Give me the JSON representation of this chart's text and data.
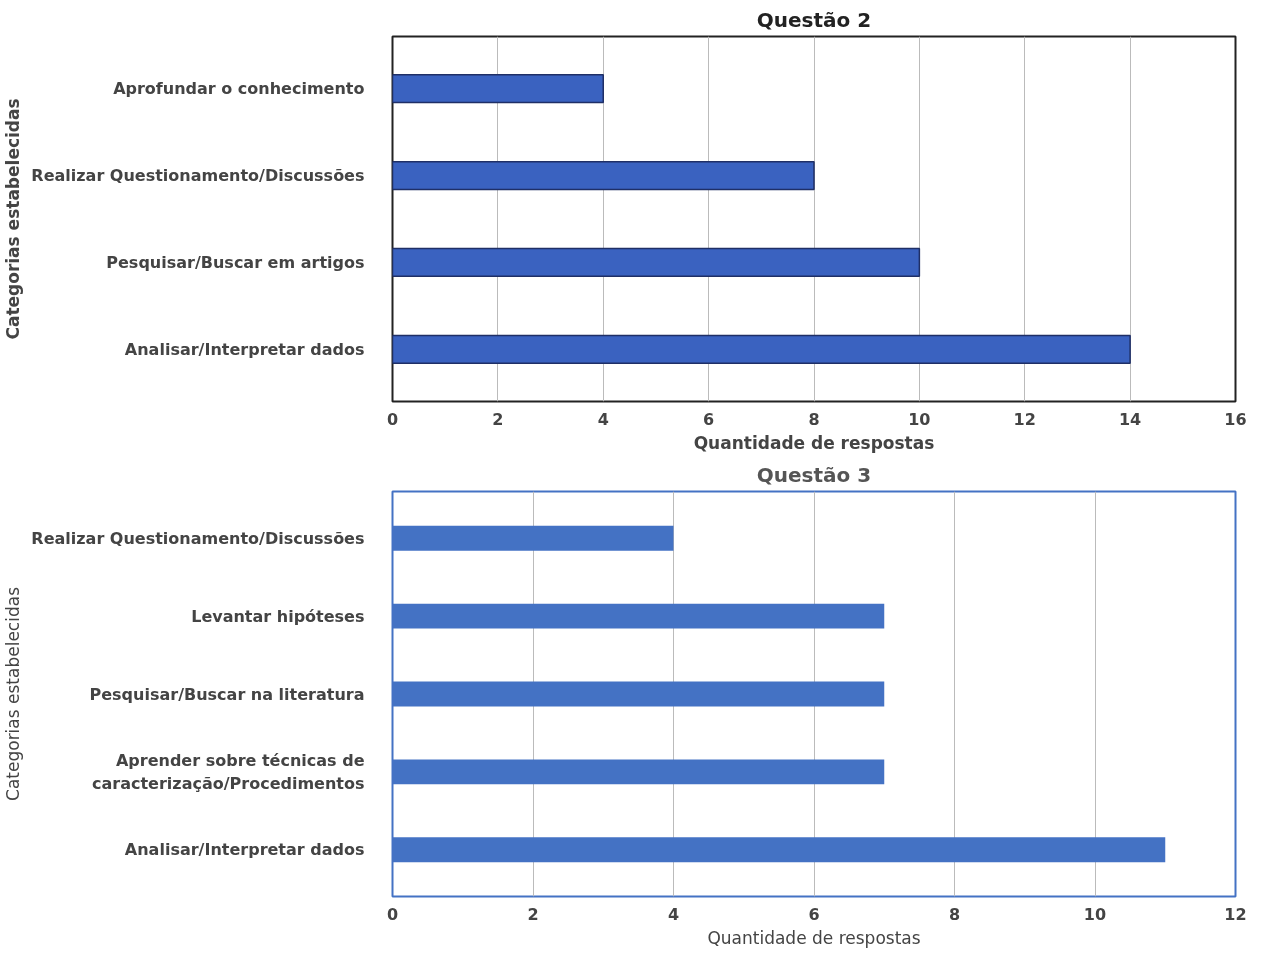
{
  "chart_data": [
    {
      "type": "bar",
      "orientation": "horizontal",
      "title": "Questão 2",
      "xlabel": "Quantidade de respostas",
      "ylabel": "Categorias estabelecidas",
      "categories": [
        "Aprofundar o conhecimento",
        "Realizar Questionamento/Discussões",
        "Pesquisar/Buscar em artigos",
        "Analisar/Interpretar dados"
      ],
      "values": [
        4,
        8,
        10,
        14
      ],
      "color": "#3a62c0",
      "xlim": [
        0,
        16
      ],
      "xticks": [
        0,
        2,
        4,
        6,
        8,
        10,
        12,
        14,
        16
      ],
      "grid": "x"
    },
    {
      "type": "bar",
      "orientation": "horizontal",
      "title": "Questão 3",
      "xlabel": "Quantidade de respostas",
      "ylabel": "Categorias estabelecidas",
      "categories": [
        "Realizar Questionamento/Discussões",
        "Levantar hipóteses",
        "Pesquisar/Buscar na literatura",
        "Aprender sobre técnicas de\ncaracterização/Procedimentos",
        "Analisar/Interpretar dados"
      ],
      "values": [
        4,
        7,
        7,
        7,
        11
      ],
      "color": "#4472c4",
      "xlim": [
        0,
        12
      ],
      "xticks": [
        0,
        2,
        4,
        6,
        8,
        10,
        12
      ],
      "grid": "x"
    }
  ]
}
